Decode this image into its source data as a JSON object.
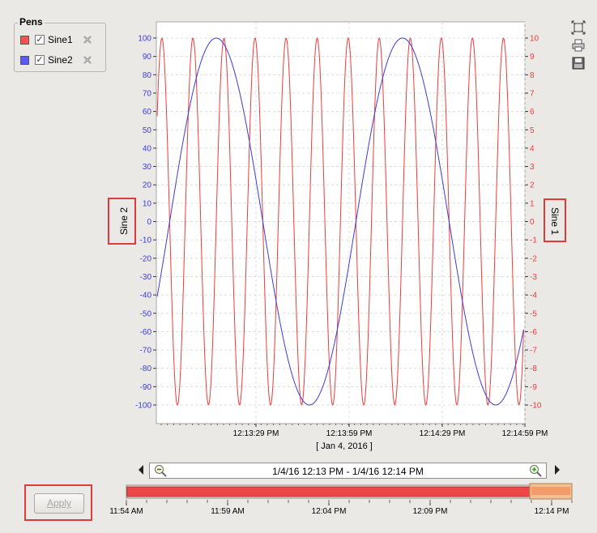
{
  "pens": {
    "title": "Pens",
    "items": [
      {
        "label": "Sine1",
        "color": "#ff4e4e",
        "checked": true
      },
      {
        "label": "Sine2",
        "color": "#5a5aff",
        "checked": true
      }
    ]
  },
  "tools": {
    "icons": [
      "fit-zoom-icon",
      "print-icon",
      "save-icon"
    ]
  },
  "colors": {
    "sine1": "#ef3b3b",
    "sine2": "#3b3bdc",
    "highlight": "#e03a3a"
  },
  "chart_data": {
    "type": "line",
    "left_axis": {
      "label": "Sine 2",
      "ylim": [
        -100,
        100
      ],
      "ticks": [
        "100",
        "90",
        "80",
        "70",
        "60",
        "50",
        "40",
        "30",
        "20",
        "10",
        "0",
        "-10",
        "-20",
        "-30",
        "-40",
        "-50",
        "-60",
        "-70",
        "-80",
        "-90",
        "-100"
      ]
    },
    "right_axis": {
      "label": "Sine 1",
      "ylim": [
        -10,
        10
      ],
      "ticks": [
        "10",
        "9",
        "8",
        "7",
        "6",
        "5",
        "4",
        "3",
        "2",
        "1",
        "0",
        "-1",
        "-2",
        "-3",
        "-4",
        "-5",
        "-6",
        "-7",
        "-8",
        "-9",
        "-10"
      ]
    },
    "x_ticks": [
      "12:13:29 PM",
      "12:13:59 PM",
      "12:14:29 PM",
      "12:14:59 PM"
    ],
    "x_date_label": "[ Jan 4, 2016 ]",
    "grid": true,
    "series": [
      {
        "name": "Sine1",
        "axis": "right",
        "amplitude": 10,
        "period_seconds": 10,
        "phase_seconds": -2.8
      },
      {
        "name": "Sine2",
        "axis": "left",
        "amplitude": 100,
        "period_seconds": 60,
        "phase_seconds": -27.8
      }
    ]
  },
  "time_range": {
    "text": "1/4/16 12:13 PM - 1/4/16 12:14 PM"
  },
  "overview": {
    "ticks": [
      "11:54 AM",
      "11:59 AM",
      "12:04 PM",
      "12:09 PM",
      "12:14 PM"
    ]
  },
  "apply_button": {
    "label": "Apply"
  }
}
